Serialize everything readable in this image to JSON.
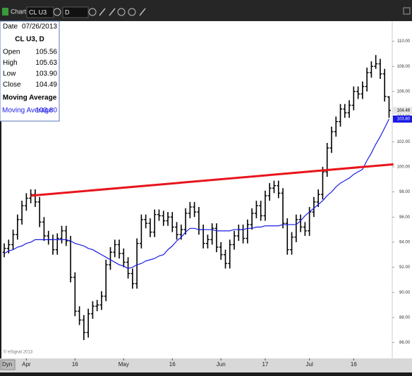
{
  "toolbar": {
    "title": "Chart",
    "symbol": "CL U3",
    "interval": "D"
  },
  "footer": {
    "mode": "Dyn",
    "copyright": "© eSignal 2013"
  },
  "info_panel": {
    "date_label": "Date",
    "date": "07/26/2013",
    "rows": [
      {
        "label": "Open",
        "value": "105.56"
      },
      {
        "label": "High",
        "value": "105.63"
      },
      {
        "label": "Low",
        "value": "103.90"
      },
      {
        "label": "Close",
        "value": "104.49"
      }
    ],
    "ma_value": "103.80"
  },
  "chart_data": {
    "type": "ohlc",
    "categories": [
      null,
      null,
      null,
      null,
      null,
      "Apr",
      null,
      null,
      null,
      null,
      null,
      null,
      null,
      null,
      null,
      null,
      "16",
      null,
      null,
      null,
      null,
      null,
      null,
      null,
      null,
      null,
      null,
      "May",
      null,
      null,
      null,
      null,
      null,
      null,
      null,
      null,
      null,
      null,
      "16",
      null,
      null,
      null,
      null,
      null,
      null,
      null,
      null,
      null,
      null,
      "Jun",
      null,
      null,
      null,
      null,
      null,
      null,
      null,
      null,
      null,
      "17",
      null,
      null,
      null,
      null,
      null,
      null,
      null,
      null,
      null,
      "Jul",
      null,
      null,
      null,
      null,
      null,
      null,
      null,
      null,
      null,
      "16",
      null,
      null,
      null,
      null,
      null,
      null,
      null,
      null
    ],
    "series": [
      {
        "name": "CL U3, D",
        "color": "#000000",
        "open": [
          93.2,
          93.5,
          93.8,
          94.6,
          95.8,
          96.9,
          97.5,
          97.8,
          97.2,
          95.6,
          94.5,
          94.2,
          93.4,
          94.3,
          94.9,
          94.1,
          91.2,
          88.5,
          87.8,
          86.8,
          88.3,
          88.9,
          89.0,
          89.7,
          92.2,
          93.2,
          93.8,
          93.1,
          92.4,
          91.5,
          90.7,
          93.9,
          95.8,
          95.5,
          94.8,
          96.2,
          96.1,
          95.7,
          96.0,
          95.2,
          94.6,
          95.0,
          96.3,
          96.8,
          96.4,
          95.0,
          93.9,
          94.2,
          95.1,
          93.6,
          93.0,
          92.3,
          93.8,
          94.5,
          95.0,
          94.3,
          95.4,
          96.3,
          96.9,
          96.1,
          97.7,
          98.3,
          98.5,
          97.9,
          95.5,
          93.4,
          94.4,
          95.8,
          95.2,
          94.9,
          96.4,
          97.2,
          97.8,
          99.6,
          101.5,
          102.8,
          103.6,
          104.6,
          104.3,
          104.9,
          106.0,
          105.8,
          106.4,
          107.5,
          108.0,
          108.2,
          107.4,
          105.56
        ],
        "high": [
          93.9,
          94.2,
          95.0,
          96.2,
          97.3,
          97.9,
          98.2,
          98.2,
          97.6,
          96.0,
          94.9,
          94.6,
          94.7,
          95.3,
          95.3,
          94.5,
          91.6,
          88.9,
          88.2,
          88.7,
          89.3,
          89.4,
          90.1,
          92.6,
          93.6,
          94.2,
          94.2,
          93.5,
          92.8,
          91.9,
          94.3,
          96.2,
          96.2,
          95.9,
          96.6,
          96.6,
          96.5,
          96.4,
          96.4,
          95.6,
          95.4,
          96.7,
          97.2,
          97.2,
          96.8,
          95.4,
          94.6,
          95.5,
          95.5,
          94.0,
          93.4,
          94.2,
          94.9,
          95.4,
          95.4,
          95.8,
          96.7,
          97.3,
          97.3,
          98.1,
          98.7,
          98.9,
          98.9,
          98.3,
          95.9,
          94.8,
          96.2,
          96.2,
          95.6,
          96.8,
          97.6,
          98.2,
          100.0,
          101.9,
          103.2,
          104.0,
          105.0,
          105.0,
          105.3,
          106.4,
          106.4,
          106.8,
          107.9,
          108.4,
          108.9,
          108.6,
          107.8,
          105.63
        ],
        "low": [
          92.8,
          93.1,
          93.4,
          94.2,
          95.4,
          96.5,
          97.1,
          96.8,
          95.2,
          94.1,
          93.8,
          93.0,
          93.0,
          93.9,
          93.7,
          90.8,
          88.1,
          87.4,
          86.2,
          86.4,
          87.9,
          88.5,
          88.6,
          89.3,
          91.8,
          92.8,
          92.7,
          92.0,
          91.1,
          90.3,
          90.3,
          93.5,
          95.1,
          94.4,
          94.4,
          95.7,
          95.3,
          95.3,
          94.8,
          94.2,
          94.2,
          94.6,
          95.9,
          96.0,
          94.6,
          93.5,
          93.5,
          93.8,
          93.2,
          92.6,
          91.9,
          91.9,
          93.4,
          94.1,
          93.9,
          93.9,
          95.0,
          95.9,
          95.7,
          95.7,
          97.3,
          97.9,
          97.5,
          95.1,
          93.0,
          93.0,
          94.0,
          94.8,
          94.5,
          94.5,
          96.0,
          96.8,
          97.4,
          99.2,
          101.1,
          102.4,
          103.2,
          103.9,
          103.9,
          104.5,
          105.4,
          105.4,
          106.0,
          107.1,
          107.8,
          107.0,
          105.2,
          103.9
        ],
        "close": [
          93.5,
          93.8,
          94.6,
          95.8,
          96.9,
          97.5,
          97.8,
          97.2,
          95.6,
          94.5,
          94.2,
          93.4,
          94.3,
          94.9,
          94.1,
          91.2,
          88.5,
          87.8,
          86.8,
          88.3,
          88.9,
          89.0,
          89.7,
          92.2,
          93.2,
          93.8,
          93.1,
          92.4,
          91.5,
          90.7,
          93.9,
          95.8,
          95.5,
          94.8,
          96.2,
          96.1,
          95.7,
          96.0,
          95.2,
          94.6,
          95.0,
          96.3,
          96.8,
          96.4,
          95.0,
          93.9,
          94.2,
          95.1,
          93.6,
          93.0,
          92.3,
          93.8,
          94.5,
          95.0,
          94.3,
          95.4,
          96.3,
          96.9,
          96.1,
          97.7,
          98.3,
          98.5,
          97.9,
          95.5,
          93.4,
          94.4,
          95.8,
          95.2,
          94.9,
          96.4,
          97.2,
          97.8,
          99.6,
          101.5,
          102.8,
          103.6,
          104.6,
          104.3,
          104.9,
          106.0,
          105.8,
          106.4,
          107.5,
          108.0,
          108.2,
          107.4,
          105.6,
          104.49
        ]
      },
      {
        "name": "Moving Average",
        "color": "#1a1ae6",
        "values": [
          93.1,
          93.3,
          93.4,
          93.6,
          93.7,
          93.9,
          94.0,
          94.2,
          94.2,
          94.2,
          94.2,
          94.2,
          94.2,
          94.2,
          94.2,
          94.1,
          93.9,
          93.8,
          93.7,
          93.5,
          93.4,
          93.2,
          93.0,
          92.8,
          92.6,
          92.4,
          92.2,
          92.1,
          91.9,
          92.0,
          92.2,
          92.3,
          92.5,
          92.6,
          92.7,
          92.9,
          93.0,
          93.4,
          93.7,
          94.1,
          94.4,
          94.8,
          95.1,
          95.1,
          95.0,
          95.0,
          95.0,
          95.0,
          94.9,
          94.9,
          94.9,
          94.9,
          95.0,
          95.0,
          95.0,
          95.1,
          95.1,
          95.2,
          95.2,
          95.3,
          95.3,
          95.3,
          95.3,
          95.4,
          95.4,
          95.4,
          95.4,
          95.7,
          96.1,
          96.4,
          96.7,
          97.0,
          97.3,
          97.7,
          98.0,
          98.4,
          98.7,
          98.9,
          99.1,
          99.4,
          99.6,
          99.8,
          100.5,
          101.1,
          101.8,
          102.4,
          103.1,
          103.8
        ]
      }
    ],
    "trendline": {
      "color": "#e8141c",
      "x": [
        6,
        88
      ],
      "values": [
        97.7,
        100.2
      ]
    },
    "ylim": [
      84.8,
      111.6
    ],
    "yticks": [
      {
        "value": 86,
        "label": "86.00"
      },
      {
        "value": 88,
        "label": "88.00"
      },
      {
        "value": 90,
        "label": "90.00"
      },
      {
        "value": 92,
        "label": "92.00"
      },
      {
        "value": 94,
        "label": "94.00"
      },
      {
        "value": 96,
        "label": "96.00"
      },
      {
        "value": 98,
        "label": "98.00"
      },
      {
        "value": 100,
        "label": "100.00"
      },
      {
        "value": 102,
        "label": "102.00"
      },
      {
        "value": 104,
        "label": "104.00"
      },
      {
        "value": 106,
        "label": "106.00"
      },
      {
        "value": 108,
        "label": "108.00"
      },
      {
        "value": 110,
        "label": "110.00"
      }
    ],
    "grid": false
  }
}
